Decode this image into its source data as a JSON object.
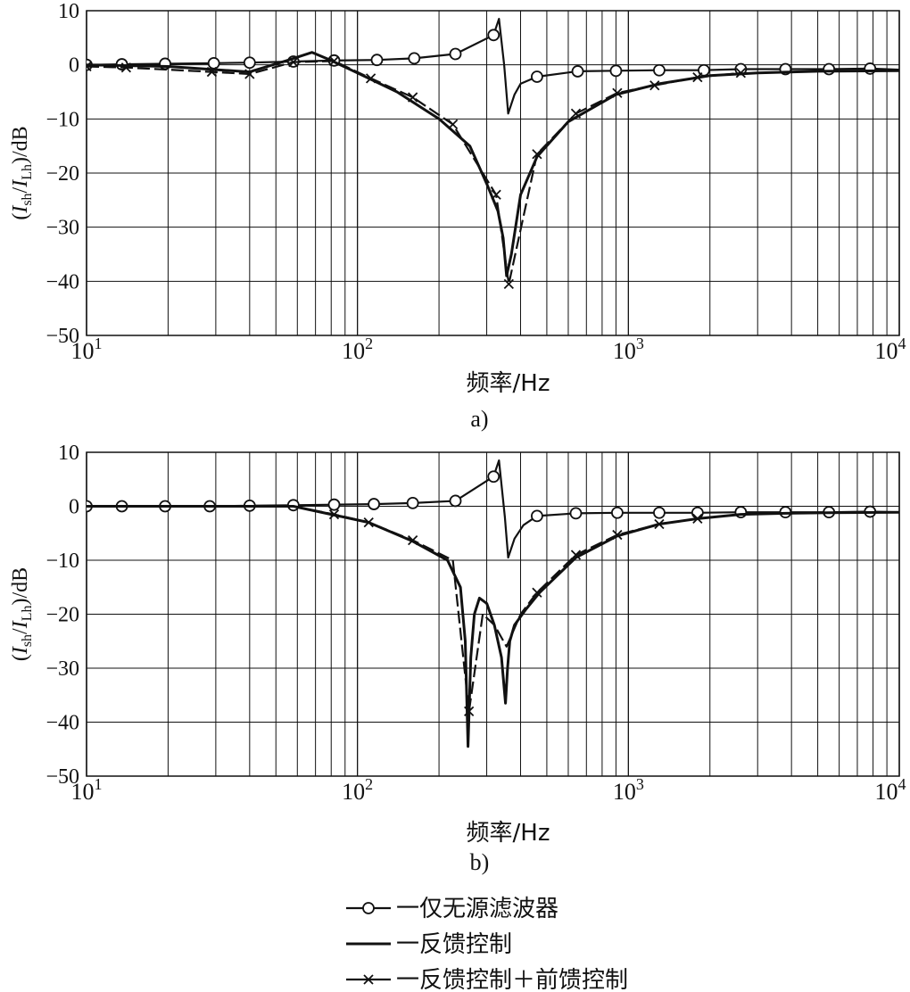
{
  "chart_data": [
    {
      "type": "line",
      "panel_label": "a)",
      "x_scale": "log",
      "xlim": [
        10,
        10000
      ],
      "ylim": [
        -50,
        10
      ],
      "grid": true,
      "xlabel": "频率/Hz",
      "ylabel": {
        "main": "I",
        "sub1": "sh",
        "mid": "/I",
        "sub2": "Lh",
        "tail": ")/dB",
        "open": "("
      },
      "x_ticks": [
        10,
        100,
        1000,
        10000
      ],
      "x_tick_labels": [
        {
          "base": "10",
          "exp": "1"
        },
        {
          "base": "10",
          "exp": "2"
        },
        {
          "base": "10",
          "exp": "3"
        },
        {
          "base": "10",
          "exp": "4"
        }
      ],
      "y_ticks": [
        10,
        0,
        -10,
        -20,
        -30,
        -40,
        -50
      ],
      "y_tick_labels": [
        "10",
        "0",
        "−10",
        "−20",
        "−30",
        "−40",
        "−50"
      ],
      "series": [
        {
          "name": "仅无源滤波器",
          "marker": "circle",
          "x": [
            10,
            13.5,
            19.5,
            29.5,
            40,
            58,
            82,
            118,
            162,
            230,
            318,
            333,
            348,
            360,
            380,
            400,
            460,
            650,
            900,
            1300,
            1900,
            2600,
            3800,
            5500,
            7800,
            10000
          ],
          "y": [
            0,
            0.1,
            0.2,
            0.3,
            0.4,
            0.6,
            0.8,
            0.9,
            1.2,
            2,
            5.5,
            8.5,
            0,
            -9,
            -5.5,
            -3.5,
            -2.2,
            -1.2,
            -1.1,
            -1.0,
            -1.0,
            -0.8,
            -0.8,
            -0.8,
            -0.7,
            -0.9
          ],
          "marker_x": [
            10,
            13.5,
            19.5,
            29.5,
            40,
            58,
            82,
            118,
            162,
            230,
            318,
            460,
            650,
            900,
            1300,
            1900,
            2600,
            3800,
            5500,
            7800
          ]
        },
        {
          "name": "反馈控制",
          "marker": "none",
          "x": [
            10,
            20,
            40,
            55,
            68,
            80,
            100,
            140,
            200,
            260,
            300,
            330,
            345,
            355,
            370,
            400,
            460,
            600,
            900,
            1300,
            2000,
            3000,
            5000,
            10000
          ],
          "y": [
            0,
            -0.3,
            -1.3,
            0.8,
            2.3,
            0.8,
            -1.5,
            -5,
            -10,
            -15,
            -22,
            -27,
            -32,
            -39,
            -35,
            -24,
            -17,
            -10.5,
            -5.5,
            -3.5,
            -2,
            -1.5,
            -1.2,
            -1.1
          ]
        },
        {
          "name": "反馈控制+前馈控制",
          "marker": "x",
          "x": [
            10,
            14,
            29,
            40,
            58,
            82,
            112,
            160,
            225,
            325,
            362,
            460,
            640,
            910,
            1250,
            1800,
            2600
          ],
          "y": [
            -0.3,
            -0.5,
            -1.3,
            -1.7,
            0.5,
            0.7,
            -2.5,
            -6,
            -11,
            -24,
            -40.5,
            -16.5,
            -9,
            -5.2,
            -3.8,
            -2.3,
            -1.5
          ]
        }
      ]
    },
    {
      "type": "line",
      "panel_label": "b)",
      "x_scale": "log",
      "xlim": [
        10,
        10000
      ],
      "ylim": [
        -50,
        10
      ],
      "grid": true,
      "xlabel": "频率/Hz",
      "ylabel": {
        "main": "I",
        "sub1": "sh",
        "mid": "/I",
        "sub2": "Lh",
        "tail": ")/dB",
        "open": "("
      },
      "x_ticks": [
        10,
        100,
        1000,
        10000
      ],
      "x_tick_labels": [
        {
          "base": "10",
          "exp": "1"
        },
        {
          "base": "10",
          "exp": "2"
        },
        {
          "base": "10",
          "exp": "3"
        },
        {
          "base": "10",
          "exp": "4"
        }
      ],
      "y_ticks": [
        10,
        0,
        -10,
        -20,
        -30,
        -40,
        -50
      ],
      "y_tick_labels": [
        "10",
        "0",
        "−10",
        "−20",
        "−30",
        "−40",
        "−50"
      ],
      "series": [
        {
          "name": "仅无源滤波器",
          "marker": "circle",
          "x": [
            10,
            13.5,
            19.5,
            28.5,
            40,
            58,
            82,
            115,
            160,
            230,
            318,
            333,
            350,
            360,
            380,
            410,
            460,
            640,
            910,
            1300,
            1800,
            2600,
            3800,
            5500,
            7800,
            10000
          ],
          "y": [
            0,
            0,
            0,
            0,
            0.1,
            0.2,
            0.3,
            0.4,
            0.6,
            1,
            5.5,
            8.5,
            -2,
            -9.5,
            -6,
            -3.5,
            -1.8,
            -1.3,
            -1.2,
            -1.2,
            -1.2,
            -1.1,
            -1.1,
            -1.1,
            -1.0,
            -1.1
          ],
          "marker_x": [
            10,
            13.5,
            19.5,
            28.5,
            40,
            58,
            82,
            115,
            160,
            230,
            318,
            460,
            640,
            910,
            1300,
            1800,
            2600,
            3800,
            5500,
            7800
          ]
        },
        {
          "name": "反馈控制",
          "marker": "none",
          "x": [
            10,
            58,
            80,
            110,
            160,
            215,
            240,
            250,
            256,
            262,
            270,
            282,
            300,
            320,
            340,
            352,
            358,
            365,
            380,
            420,
            470,
            640,
            910,
            1300,
            1800,
            2600,
            3800,
            5500,
            10000
          ],
          "y": [
            0,
            0,
            -1.5,
            -3,
            -6.5,
            -10,
            -15,
            -25,
            -44.5,
            -28,
            -20,
            -17,
            -18,
            -22,
            -28,
            -36.5,
            -30,
            -25,
            -22,
            -19,
            -16,
            -9.5,
            -5.5,
            -3.3,
            -2.3,
            -1.5,
            -1.3,
            -1.2,
            -1.1
          ]
        },
        {
          "name": "反馈控制+前馈控制",
          "marker": "x",
          "x": [
            58,
            82,
            110,
            160,
            225,
            258,
            290,
            320,
            355,
            400,
            460,
            640,
            910,
            1300,
            1800
          ],
          "y": [
            0,
            -1.5,
            -3,
            -6.3,
            -10,
            -38,
            -20,
            -22,
            -26,
            -20,
            -16,
            -9,
            -5.3,
            -3.3,
            -2.3
          ],
          "marker_x": [
            82,
            110,
            160,
            258,
            460,
            640,
            910,
            1300,
            1800
          ]
        }
      ]
    }
  ],
  "legend": {
    "items": [
      {
        "marker": "circle",
        "label": "一仅无源滤波器"
      },
      {
        "marker": "none",
        "label": "一反馈控制"
      },
      {
        "marker": "x",
        "label": "一反馈控制＋前馈控制"
      }
    ]
  },
  "colors": {
    "ink": "#111111",
    "background": "#ffffff"
  }
}
